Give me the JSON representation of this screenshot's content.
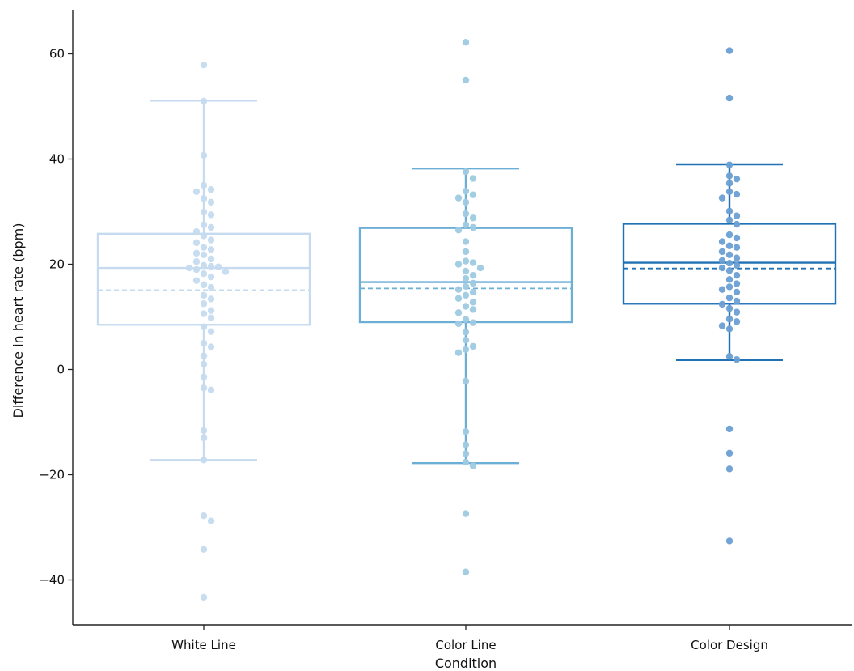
{
  "chart_data": {
    "type": "box-swarm",
    "title": "",
    "xlabel": "Condition",
    "ylabel": "Difference in heart rate (bpm)",
    "ylim": [
      -50,
      68
    ],
    "yticks": [
      -40,
      -20,
      0,
      20,
      40,
      60
    ],
    "categories": [
      "White Line",
      "Color Line",
      "Color Design"
    ],
    "colors": [
      "#c6dbef",
      "#6baed6",
      "#2171b5"
    ],
    "point_colors": [
      "#c6dbef",
      "#9ecae1",
      "#6a9fd3"
    ],
    "legend": "none",
    "grid": false,
    "boxes": [
      {
        "q1": 8.5,
        "median": 19.3,
        "mean": 15.1,
        "q3": 25.8,
        "whisker_low": -17.2,
        "whisker_high": 51.1
      },
      {
        "q1": 9.0,
        "median": 16.6,
        "mean": 15.4,
        "q3": 26.9,
        "whisker_low": -17.8,
        "whisker_high": 38.2
      },
      {
        "q1": 12.5,
        "median": 20.3,
        "mean": 19.2,
        "q3": 27.7,
        "whisker_low": 1.8,
        "whisker_high": 39.0
      }
    ],
    "points": [
      [
        57.9,
        51.0,
        40.7,
        35.0,
        34.2,
        33.8,
        32.5,
        31.8,
        29.9,
        29.4,
        27.5,
        27.0,
        26.2,
        25.4,
        24.6,
        24.1,
        23.2,
        22.8,
        22.1,
        21.8,
        21.0,
        20.5,
        19.8,
        19.6,
        19.5,
        19.3,
        19.0,
        18.6,
        18.2,
        17.6,
        16.9,
        16.1,
        15.6,
        14.1,
        13.4,
        12.5,
        11.2,
        10.6,
        9.8,
        8.1,
        7.2,
        5.0,
        4.3,
        2.6,
        1.0,
        -1.4,
        -3.5,
        -3.9,
        -11.6,
        -13.0,
        -17.2,
        -27.8,
        -28.8,
        -34.2,
        -43.3
      ],
      [
        62.2,
        55.0,
        37.6,
        36.3,
        33.9,
        33.2,
        32.6,
        31.8,
        29.6,
        28.8,
        27.5,
        27.0,
        26.5,
        24.3,
        22.4,
        20.6,
        20.3,
        20.0,
        19.3,
        18.7,
        17.9,
        17.3,
        16.4,
        15.8,
        15.2,
        14.7,
        14.1,
        13.5,
        12.8,
        12.0,
        11.4,
        10.8,
        9.5,
        8.9,
        8.7,
        7.1,
        5.6,
        4.4,
        3.8,
        3.2,
        -2.2,
        -11.8,
        -14.3,
        -16.0,
        -17.6,
        -18.3,
        -27.4,
        -38.5
      ],
      [
        60.6,
        51.6,
        38.9,
        36.8,
        36.2,
        35.4,
        33.8,
        33.3,
        32.6,
        30.1,
        29.2,
        28.4,
        27.6,
        25.6,
        25.0,
        24.3,
        23.5,
        23.2,
        22.4,
        21.8,
        21.2,
        20.7,
        20.2,
        19.8,
        19.3,
        18.8,
        17.9,
        17.1,
        16.3,
        15.7,
        15.2,
        14.7,
        13.6,
        13.0,
        12.4,
        11.6,
        10.9,
        9.6,
        9.1,
        8.3,
        7.7,
        2.5,
        1.9,
        -11.3,
        -15.9,
        -18.9,
        -32.6
      ]
    ]
  }
}
